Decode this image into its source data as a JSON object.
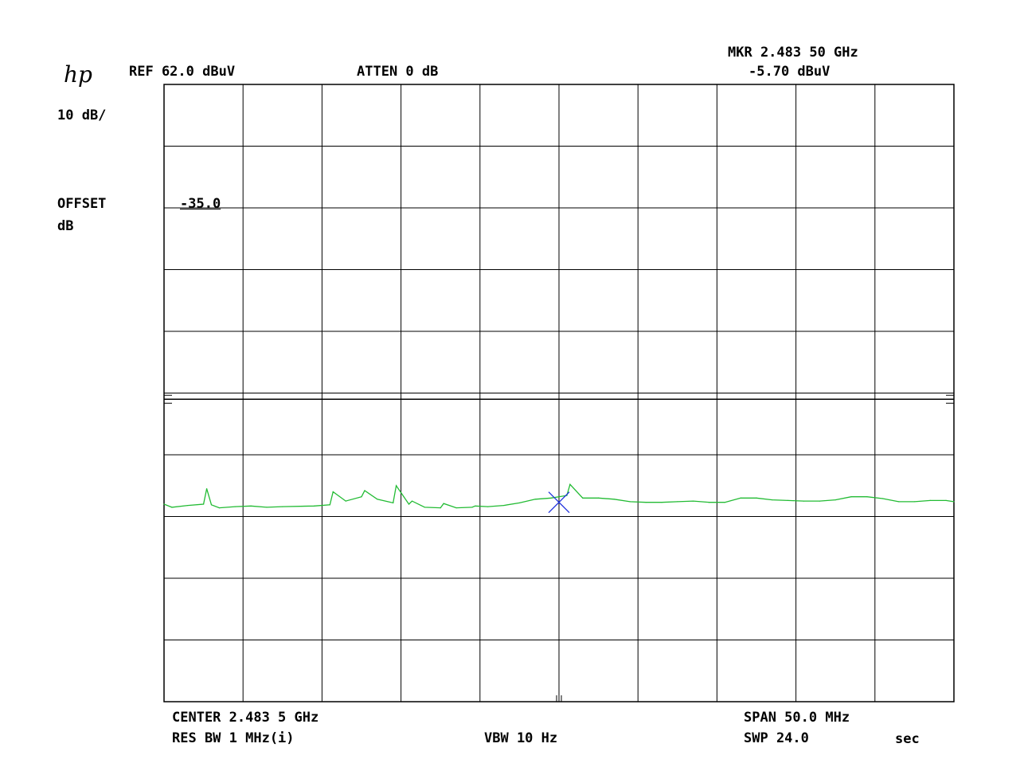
{
  "header": {
    "logo": "hp",
    "ref_level": "REF 62.0 dBuV",
    "attenuation": "ATTEN 0 dB",
    "marker_freq": "MKR 2.483 50 GHz",
    "marker_level": "-5.70 dBuV"
  },
  "left_panel": {
    "scale": "10 dB/",
    "offset_label": "OFFSET",
    "offset_unit": "dB",
    "offset_value": "-35.0"
  },
  "footer": {
    "center": "CENTER 2.483 5 GHz",
    "res_bw": "RES BW 1 MHz(i)",
    "vbw": "VBW 10 Hz",
    "span": "SPAN 50.0 MHz",
    "sweep": "SWP 24.0",
    "sweep_unit": "sec"
  },
  "colors": {
    "trace": "#22bb33",
    "marker": "#2233dd",
    "grid": "#000000"
  },
  "chart_data": {
    "type": "line",
    "x_unit": "GHz",
    "y_unit": "dBuV",
    "xlim": [
      2.4585,
      2.5085
    ],
    "ylim": [
      -37.0,
      62.0
    ],
    "reference_level": 62.0,
    "scale_db_per_div": 10,
    "divisions": {
      "x": 10,
      "y": 10
    },
    "display_line": 11.0,
    "grid": true,
    "x": [
      2.4585,
      2.459,
      2.46,
      2.461,
      2.4612,
      2.4615,
      2.462,
      2.463,
      2.464,
      2.465,
      2.466,
      2.468,
      2.469,
      2.4692,
      2.47,
      2.471,
      2.4712,
      2.472,
      2.473,
      2.4732,
      2.474,
      2.4742,
      2.475,
      2.476,
      2.4762,
      2.477,
      2.478,
      2.4782,
      2.479,
      2.48,
      2.481,
      2.482,
      2.483,
      2.484,
      2.4842,
      2.485,
      2.486,
      2.487,
      2.488,
      2.489,
      2.49,
      2.491,
      2.492,
      2.493,
      2.494,
      2.495,
      2.496,
      2.497,
      2.498,
      2.499,
      2.5,
      2.501,
      2.502,
      2.503,
      2.504,
      2.505,
      2.506,
      2.507,
      2.508,
      2.5085
    ],
    "y": [
      -6.0,
      -6.5,
      -6.2,
      -6.0,
      -3.5,
      -6.1,
      -6.6,
      -6.4,
      -6.3,
      -6.5,
      -6.4,
      -6.3,
      -6.1,
      -4.0,
      -5.5,
      -4.8,
      -3.8,
      -5.2,
      -5.8,
      -3.0,
      -6.0,
      -5.5,
      -6.5,
      -6.6,
      -5.9,
      -6.6,
      -6.5,
      -6.3,
      -6.4,
      -6.2,
      -5.8,
      -5.2,
      -5.0,
      -4.6,
      -2.8,
      -5.0,
      -5.0,
      -5.2,
      -5.6,
      -5.7,
      -5.7,
      -5.6,
      -5.5,
      -5.7,
      -5.7,
      -5.0,
      -5.0,
      -5.3,
      -5.4,
      -5.5,
      -5.5,
      -5.3,
      -4.8,
      -4.8,
      -5.1,
      -5.6,
      -5.6,
      -5.4,
      -5.4,
      -5.6
    ],
    "marker": {
      "x": 2.4835,
      "y": -5.7
    }
  }
}
